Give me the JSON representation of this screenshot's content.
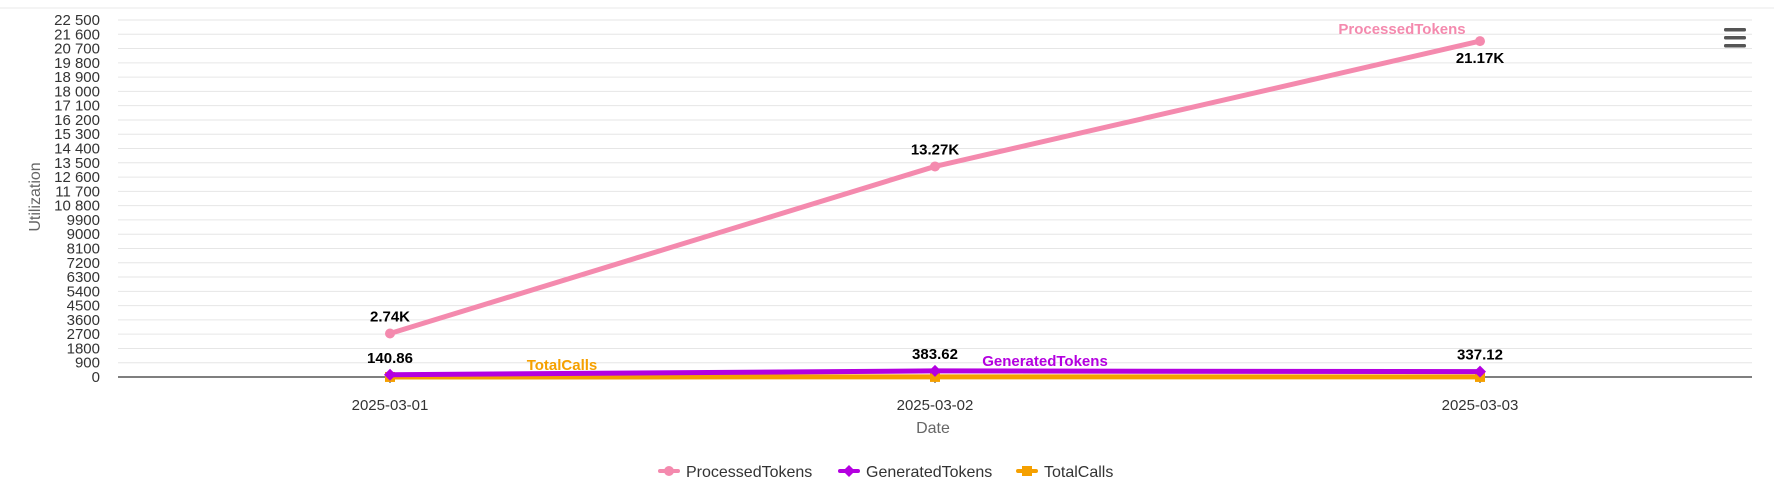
{
  "chart_data": {
    "type": "line",
    "xlabel": "Date",
    "ylabel": "Utilization",
    "categories": [
      "2025-03-01",
      "2025-03-02",
      "2025-03-03"
    ],
    "ylim": [
      0,
      22500
    ],
    "yticks": [
      0,
      900,
      1800,
      2700,
      3600,
      4500,
      5400,
      6300,
      7200,
      8100,
      9000,
      9900,
      10800,
      11700,
      12600,
      13500,
      14400,
      15300,
      16200,
      17100,
      18000,
      18900,
      19800,
      20700,
      21600,
      22500
    ],
    "ytick_labels": [
      "0",
      "900",
      "1800",
      "2700",
      "3600",
      "4500",
      "5400",
      "6300",
      "7200",
      "8100",
      "9000",
      "9900",
      "10 800",
      "11 700",
      "12 600",
      "13 500",
      "14 400",
      "15 300",
      "16 200",
      "17 100",
      "18 000",
      "18 900",
      "19 800",
      "20 700",
      "21 600",
      "22 500"
    ],
    "grid": true,
    "legend_position": "bottom-center",
    "series": [
      {
        "name": "ProcessedTokens",
        "color": "#f48aae",
        "marker": "circle",
        "values": [
          2740,
          13270,
          21170
        ],
        "data_labels": [
          "2.74K",
          "13.27K",
          "21.17K"
        ],
        "series_label": "ProcessedTokens"
      },
      {
        "name": "GeneratedTokens",
        "color": "#b400e0",
        "marker": "diamond",
        "values": [
          140.86,
          383.62,
          337.12
        ],
        "data_labels": [
          "140.86",
          "383.62",
          "337.12"
        ],
        "series_label": "GeneratedTokens"
      },
      {
        "name": "TotalCalls",
        "color": "#f5a000",
        "marker": "square",
        "values": [
          3,
          5,
          4
        ],
        "data_labels": [],
        "series_label": "TotalCalls"
      }
    ]
  },
  "toolbar": {
    "menu_icon": "hamburger-menu-icon"
  }
}
